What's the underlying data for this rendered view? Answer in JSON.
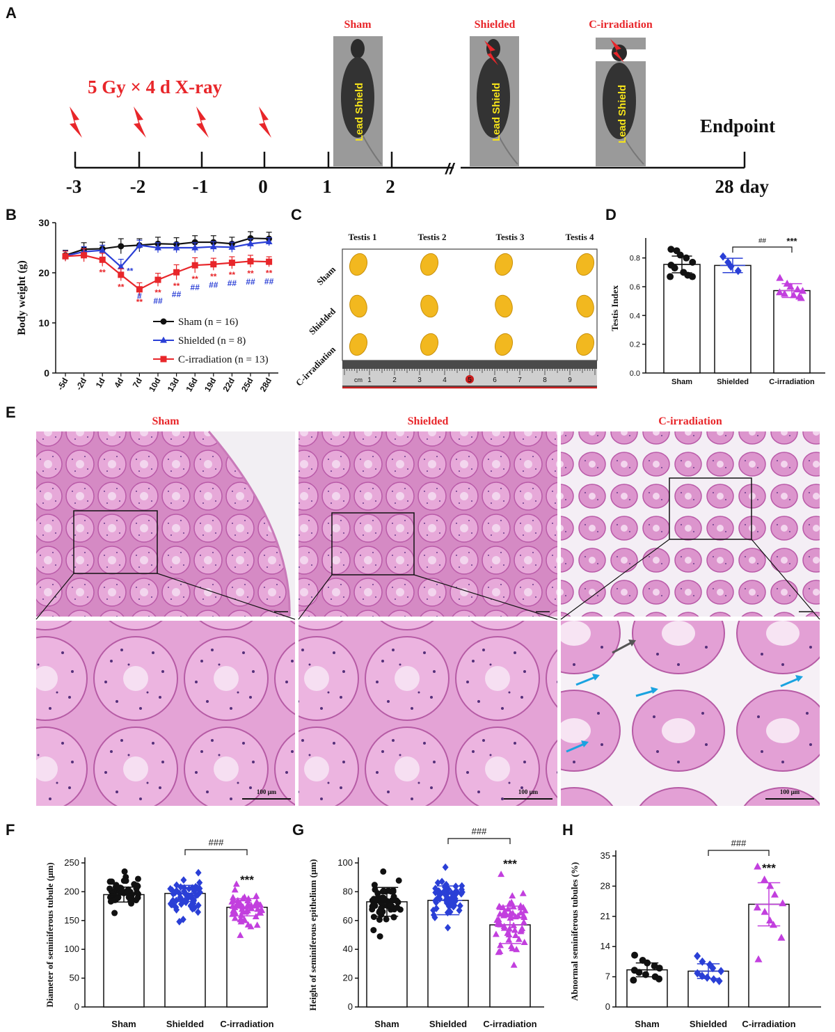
{
  "panels": {
    "A": "A",
    "B": "B",
    "C": "C",
    "D": "D",
    "E": "E",
    "F": "F",
    "G": "G",
    "H": "H"
  },
  "panel_a": {
    "dose_text": "5 Gy × 4 d   X-ray",
    "days": [
      "-3",
      "-2",
      "-1",
      "0",
      "1",
      "2",
      "28"
    ],
    "day_unit": "day",
    "endpoint": "Endpoint",
    "groups": [
      "Sham",
      "Shielded",
      "C-irradiation"
    ],
    "shield_text": "Lead Shield",
    "colors": {
      "red": "#e8262a",
      "shield": "#f5e31a"
    }
  },
  "panel_c": {
    "columns": [
      "Testis 1",
      "Testis 2",
      "Testis 3",
      "Testis 4"
    ],
    "rows": [
      "Sham",
      "Shielded",
      "C-irradiation"
    ],
    "ruler_unit": "cm",
    "ruler_ticks": [
      "1",
      "2",
      "3",
      "4",
      "5",
      "6",
      "7",
      "8",
      "9"
    ]
  },
  "panel_e": {
    "titles": [
      "Sham",
      "Shielded",
      "C-irradiation"
    ],
    "scale": "100 μm"
  },
  "chart_data": [
    {
      "id": "B",
      "type": "line",
      "ylabel": "Body weight (g)",
      "categories": [
        "-5d",
        "-2d",
        "1d",
        "4d",
        "7d",
        "10d",
        "13d",
        "16d",
        "19d",
        "22d",
        "25d",
        "28d"
      ],
      "yticks": [
        "0",
        "10",
        "20",
        "30"
      ],
      "ylim": [
        0,
        30
      ],
      "series": [
        {
          "name": "Sham (n = 16)",
          "color": "#111111",
          "marker": "circle",
          "values": [
            23.5,
            24.7,
            24.8,
            25.3,
            25.5,
            25.8,
            25.7,
            26.1,
            26.1,
            25.8,
            26.9,
            26.8
          ],
          "errors": [
            1.0,
            1.3,
            1.3,
            1.5,
            1.3,
            1.3,
            1.3,
            1.3,
            1.3,
            1.3,
            1.3,
            1.3
          ]
        },
        {
          "name": "Shielded (n = 8)",
          "color": "#2a3fd6",
          "marker": "triangle",
          "values": [
            23.4,
            24.2,
            24.5,
            21.2,
            25.5,
            25.0,
            25.0,
            25.0,
            25.2,
            25.1,
            25.8,
            26.2
          ],
          "errors": [
            1.0,
            1.0,
            1.0,
            1.5,
            1.0,
            1.0,
            1.0,
            1.0,
            1.0,
            1.0,
            1.0,
            0.8
          ]
        },
        {
          "name": "C-irradiation (n = 13)",
          "color": "#e8262a",
          "marker": "square",
          "values": [
            23.3,
            23.5,
            22.6,
            19.6,
            16.7,
            18.6,
            20.1,
            21.5,
            21.7,
            22.0,
            22.3,
            22.2
          ],
          "errors": [
            1.0,
            1.3,
            1.3,
            1.2,
            1.3,
            1.3,
            1.5,
            1.5,
            1.2,
            1.2,
            1.2,
            1.0
          ]
        }
      ],
      "annotations_red": [
        "**",
        "**",
        "**",
        "**",
        "**",
        "**",
        "**",
        "**",
        "**",
        "**"
      ],
      "annotations_blue": [
        "**",
        "#",
        "##",
        "##",
        "##",
        "##",
        "##",
        "##",
        "##",
        "##"
      ]
    },
    {
      "id": "D",
      "type": "bar",
      "ylabel": "Testis Index",
      "categories": [
        "Sham",
        "Shielded",
        "C-irradiation"
      ],
      "values": [
        0.755,
        0.748,
        0.573
      ],
      "errors": [
        0.058,
        0.05,
        0.048
      ],
      "yticks": [
        "0.0",
        "0.2",
        "0.4",
        "0.6",
        "0.8"
      ],
      "ylim": [
        0,
        0.9
      ],
      "colors": [
        "#111111",
        "#2a3fd6",
        "#c23fde"
      ],
      "markers": [
        "circle",
        "diamond",
        "triangle"
      ],
      "points": [
        [
          0.86,
          0.85,
          0.82,
          0.8,
          0.77,
          0.75,
          0.73,
          0.7,
          0.68,
          0.67,
          0.67
        ],
        [
          0.81,
          0.77,
          0.74,
          0.71
        ],
        [
          0.66,
          0.62,
          0.6,
          0.58,
          0.57,
          0.56,
          0.55,
          0.54,
          0.53,
          0.52
        ]
      ],
      "bracket": "##",
      "sig": "***"
    },
    {
      "id": "F",
      "type": "bar",
      "ylabel": "Diameter of seminiferous tubule (μm)",
      "categories": [
        "Sham",
        "Shielded",
        "C-irradiation"
      ],
      "values": [
        195,
        197,
        173
      ],
      "errors": [
        13,
        14,
        15
      ],
      "yticks": [
        "0",
        "50",
        "100",
        "150",
        "200",
        "250"
      ],
      "ylim": [
        0,
        250
      ],
      "colors": [
        "#111111",
        "#2a3fd6",
        "#c23fde"
      ],
      "markers": [
        "circle",
        "diamond",
        "triangle"
      ],
      "n_points": 55,
      "point_range": [
        [
          163,
          235
        ],
        [
          148,
          233
        ],
        [
          124,
          213
        ]
      ],
      "bracket": "###",
      "sig": "***"
    },
    {
      "id": "G",
      "type": "bar",
      "ylabel": "Height of seminiferous epithelium (μm)",
      "categories": [
        "Sham",
        "Shielded",
        "C-irradiation"
      ],
      "values": [
        73,
        74,
        57
      ],
      "errors": [
        10,
        10,
        13
      ],
      "yticks": [
        "0",
        "20",
        "40",
        "60",
        "80",
        "100"
      ],
      "ylim": [
        0,
        100
      ],
      "colors": [
        "#111111",
        "#2a3fd6",
        "#c23fde"
      ],
      "markers": [
        "circle",
        "diamond",
        "triangle"
      ],
      "n_points": 55,
      "point_range": [
        [
          49,
          94
        ],
        [
          55,
          97
        ],
        [
          29,
          92
        ]
      ],
      "bracket": "###",
      "sig": "***"
    },
    {
      "id": "H",
      "type": "bar",
      "ylabel": "Abnormal seminiferous tubules (%)",
      "categories": [
        "Sham",
        "Shielded",
        "C-irradiation"
      ],
      "values": [
        8.6,
        8.3,
        23.8
      ],
      "errors": [
        1.6,
        1.7,
        5.0
      ],
      "yticks": [
        "0",
        "7",
        "14",
        "21",
        "28",
        "35"
      ],
      "ylim": [
        0,
        35
      ],
      "colors": [
        "#111111",
        "#2a3fd6",
        "#c23fde"
      ],
      "markers": [
        "circle",
        "diamond",
        "triangle"
      ],
      "points": [
        [
          12,
          10.8,
          10.2,
          9.5,
          9.0,
          8.5,
          8.0,
          7.5,
          7.0,
          6.5,
          6.2
        ],
        [
          11.8,
          10.5,
          9.8,
          9.0,
          8.3,
          7.8,
          7.2,
          6.8,
          6.4,
          6.0
        ],
        [
          32.5,
          29.5,
          28,
          26,
          24,
          23,
          22,
          20,
          19,
          16,
          11
        ]
      ],
      "bracket": "###",
      "sig": "***"
    }
  ]
}
